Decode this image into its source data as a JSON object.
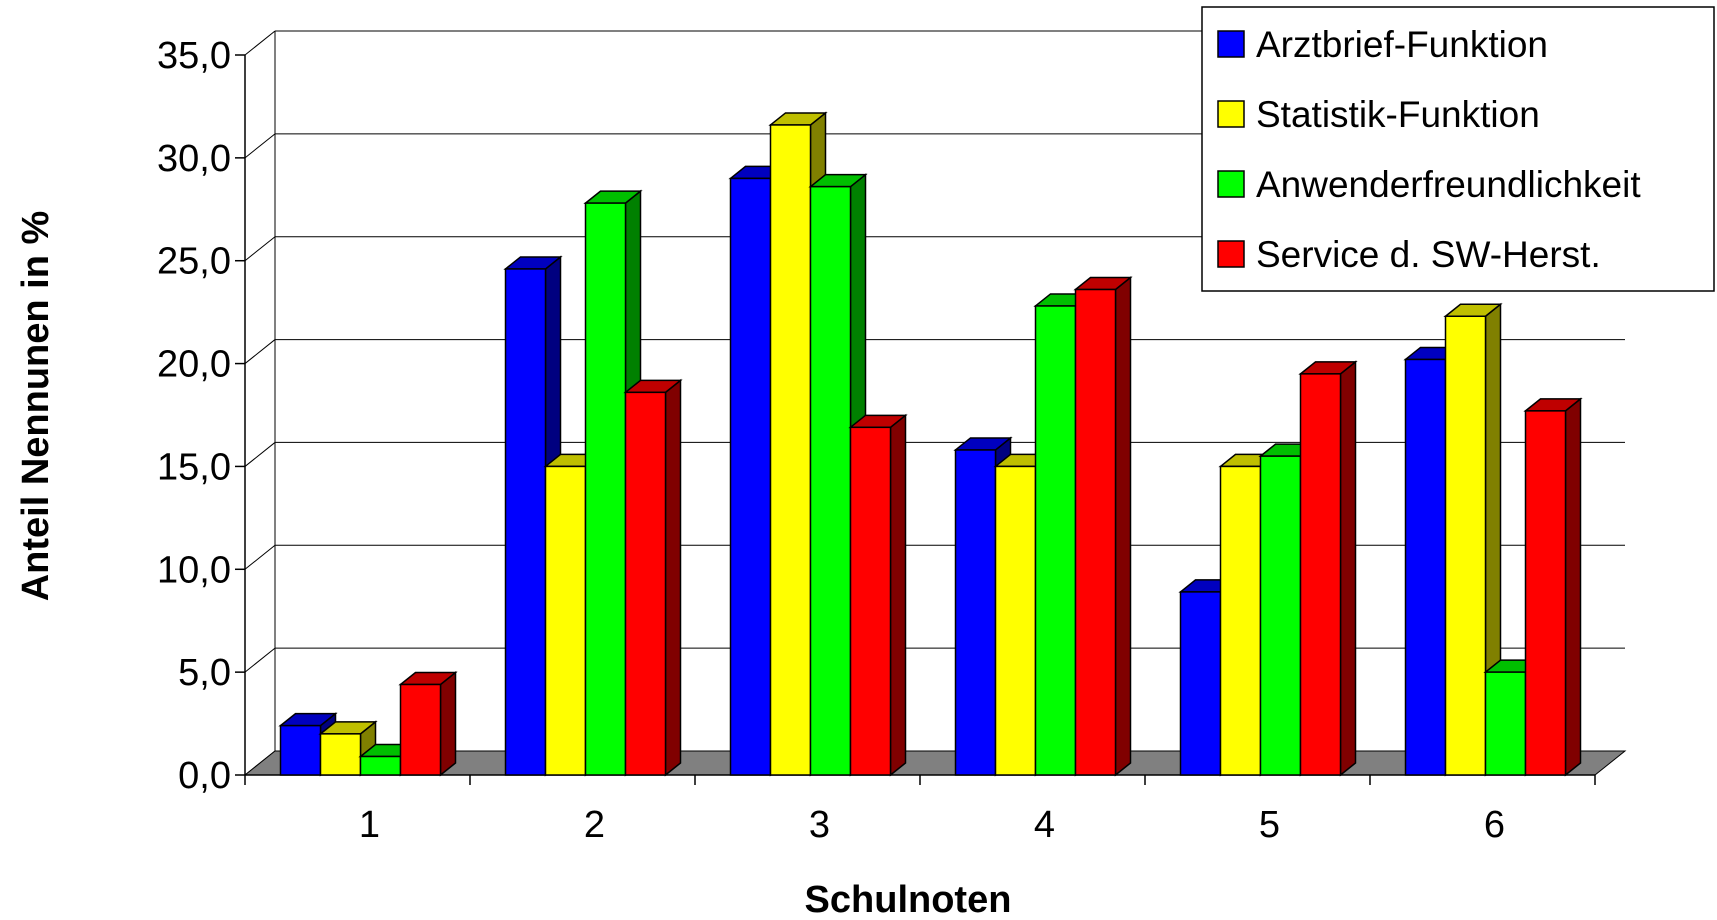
{
  "chart_data": {
    "type": "bar",
    "title": "",
    "xlabel": "Schulnoten",
    "ylabel": "Anteil Nennunen in %",
    "categories": [
      "1",
      "2",
      "3",
      "4",
      "5",
      "6"
    ],
    "ylim": [
      0,
      35
    ],
    "yticks": [
      "0,0",
      "5,0",
      "10,0",
      "15,0",
      "20,0",
      "25,0",
      "30,0",
      "35,0"
    ],
    "grid": true,
    "legend_position": "top-right",
    "series": [
      {
        "name": "Arztbrief-Funktion",
        "color": "#0000ff",
        "values": [
          2.4,
          24.6,
          29.0,
          15.8,
          8.9,
          20.2
        ]
      },
      {
        "name": "Statistik-Funktion",
        "color": "#ffff00",
        "values": [
          2.0,
          15.0,
          31.6,
          15.0,
          15.0,
          22.3
        ]
      },
      {
        "name": "Anwenderfreundlichkeit",
        "color": "#00ff00",
        "values": [
          0.9,
          27.8,
          28.6,
          22.8,
          15.5,
          5.0
        ]
      },
      {
        "name": "Service d. SW-Herst.",
        "color": "#ff0000",
        "values": [
          4.4,
          18.6,
          16.9,
          23.6,
          19.5,
          17.7
        ]
      }
    ]
  }
}
